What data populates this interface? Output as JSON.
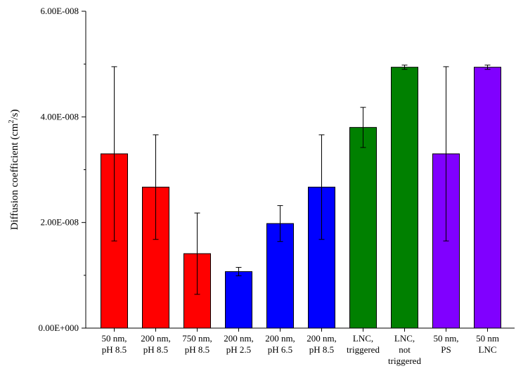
{
  "chart_data": {
    "type": "bar",
    "categories": [
      [
        "50 nm,",
        "pH 8.5"
      ],
      [
        "200 nm,",
        "pH 8.5"
      ],
      [
        "750 nm,",
        "pH 8.5"
      ],
      [
        "200 nm,",
        "pH 2.5"
      ],
      [
        "200 nm,",
        "pH 6.5"
      ],
      [
        "200 nm,",
        "pH 8.5"
      ],
      [
        "LNC,",
        "triggered"
      ],
      [
        "LNC,",
        "not",
        "triggered"
      ],
      [
        "50 nm,",
        "PS"
      ],
      [
        "50 nm",
        "LNC"
      ]
    ],
    "values": [
      3.3e-08,
      2.67e-08,
      1.41e-08,
      1.07e-08,
      1.98e-08,
      2.67e-08,
      3.8e-08,
      4.94e-08,
      3.3e-08,
      4.94e-08
    ],
    "errors": [
      1.65e-08,
      9.9e-09,
      7.7e-09,
      8e-10,
      3.4e-09,
      9.9e-09,
      3.8e-09,
      4e-10,
      1.65e-08,
      4e-10
    ],
    "bar_colors": [
      "#ff0000",
      "#ff0000",
      "#ff0000",
      "#0000ff",
      "#0000ff",
      "#0000ff",
      "#008000",
      "#008000",
      "#8000ff",
      "#8000ff"
    ],
    "ylabel_text": "Diffusion coefficient (cm",
    "ylabel_sup": "2",
    "ylabel_tail": "/s)",
    "ylim": [
      0,
      6e-08
    ],
    "yticks": [
      {
        "value": 0,
        "label": "0.00E+000"
      },
      {
        "value": 2e-08,
        "label": "2.00E-008"
      },
      {
        "value": 4e-08,
        "label": "4.00E-008"
      },
      {
        "value": 6e-08,
        "label": "6.00E-008"
      }
    ],
    "minor_yticks": [
      1e-08,
      3e-08,
      5e-08
    ],
    "grid": false
  }
}
